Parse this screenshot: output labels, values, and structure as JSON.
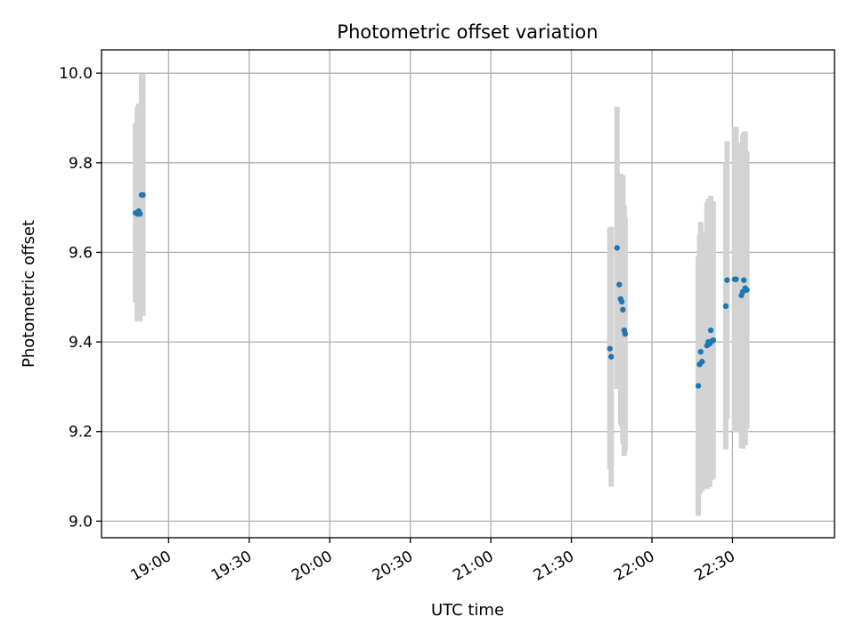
{
  "chart_data": {
    "type": "scatter",
    "title": "Photometric offset variation",
    "xlabel": "UTC time",
    "ylabel": "Photometric offset",
    "x_range": [
      "18:35",
      "23:08"
    ],
    "ylim": [
      8.963,
      10.052
    ],
    "grid": true,
    "x_ticks": [
      "19:00",
      "19:30",
      "20:00",
      "20:30",
      "21:00",
      "21:30",
      "22:00",
      "22:30"
    ],
    "y_ticks": [
      "9.0",
      "9.2",
      "9.4",
      "9.6",
      "9.8",
      "10.0"
    ],
    "colors": {
      "points": "#1f77b4",
      "errorbars": "#d3d3d3",
      "grid": "#b0b0b0"
    },
    "points": [
      {
        "x": "18:47:40",
        "y": 9.688,
        "yerr": 0.2
      },
      {
        "x": "18:48:20",
        "y": 9.686,
        "yerr": 0.24
      },
      {
        "x": "18:48:50",
        "y": 9.692,
        "yerr": 0.24
      },
      {
        "x": "18:49:20",
        "y": 9.686,
        "yerr": 0.24
      },
      {
        "x": "18:49:55",
        "y": 9.728,
        "yerr": 0.27
      },
      {
        "x": "18:50:25",
        "y": 9.728,
        "yerr": 0.27
      },
      {
        "x": "21:44:20",
        "y": 9.385,
        "yerr": 0.27
      },
      {
        "x": "21:44:50",
        "y": 9.367,
        "yerr": 0.29
      },
      {
        "x": "21:47:00",
        "y": 9.61,
        "yerr": 0.315
      },
      {
        "x": "21:47:50",
        "y": 9.528,
        "yerr": 0.23
      },
      {
        "x": "21:48:20",
        "y": 9.496,
        "yerr": 0.28
      },
      {
        "x": "21:48:45",
        "y": 9.49,
        "yerr": 0.28
      },
      {
        "x": "21:49:10",
        "y": 9.472,
        "yerr": 0.3
      },
      {
        "x": "21:49:40",
        "y": 9.426,
        "yerr": 0.28
      },
      {
        "x": "21:50:00",
        "y": 9.418,
        "yerr": 0.26
      },
      {
        "x": "22:17:15",
        "y": 9.302,
        "yerr": 0.29
      },
      {
        "x": "22:17:45",
        "y": 9.35,
        "yerr": 0.29
      },
      {
        "x": "22:18:10",
        "y": 9.378,
        "yerr": 0.29
      },
      {
        "x": "22:18:40",
        "y": 9.356,
        "yerr": 0.29
      },
      {
        "x": "22:20:30",
        "y": 9.392,
        "yerr": 0.32
      },
      {
        "x": "22:21:00",
        "y": 9.4,
        "yerr": 0.32
      },
      {
        "x": "22:21:30",
        "y": 9.396,
        "yerr": 0.32
      },
      {
        "x": "22:21:55",
        "y": 9.426,
        "yerr": 0.3
      },
      {
        "x": "22:22:20",
        "y": 9.402,
        "yerr": 0.31
      },
      {
        "x": "22:22:50",
        "y": 9.404,
        "yerr": 0.31
      },
      {
        "x": "22:27:30",
        "y": 9.48,
        "yerr": 0.32
      },
      {
        "x": "22:28:00",
        "y": 9.538,
        "yerr": 0.31
      },
      {
        "x": "22:30:50",
        "y": 9.54,
        "yerr": 0.34
      },
      {
        "x": "22:31:20",
        "y": 9.54,
        "yerr": 0.34
      },
      {
        "x": "22:33:20",
        "y": 9.504,
        "yerr": 0.34
      },
      {
        "x": "22:33:50",
        "y": 9.512,
        "yerr": 0.35
      },
      {
        "x": "22:34:15",
        "y": 9.538,
        "yerr": 0.33
      },
      {
        "x": "22:34:45",
        "y": 9.52,
        "yerr": 0.35
      },
      {
        "x": "22:35:20",
        "y": 9.516,
        "yerr": 0.31
      }
    ]
  }
}
